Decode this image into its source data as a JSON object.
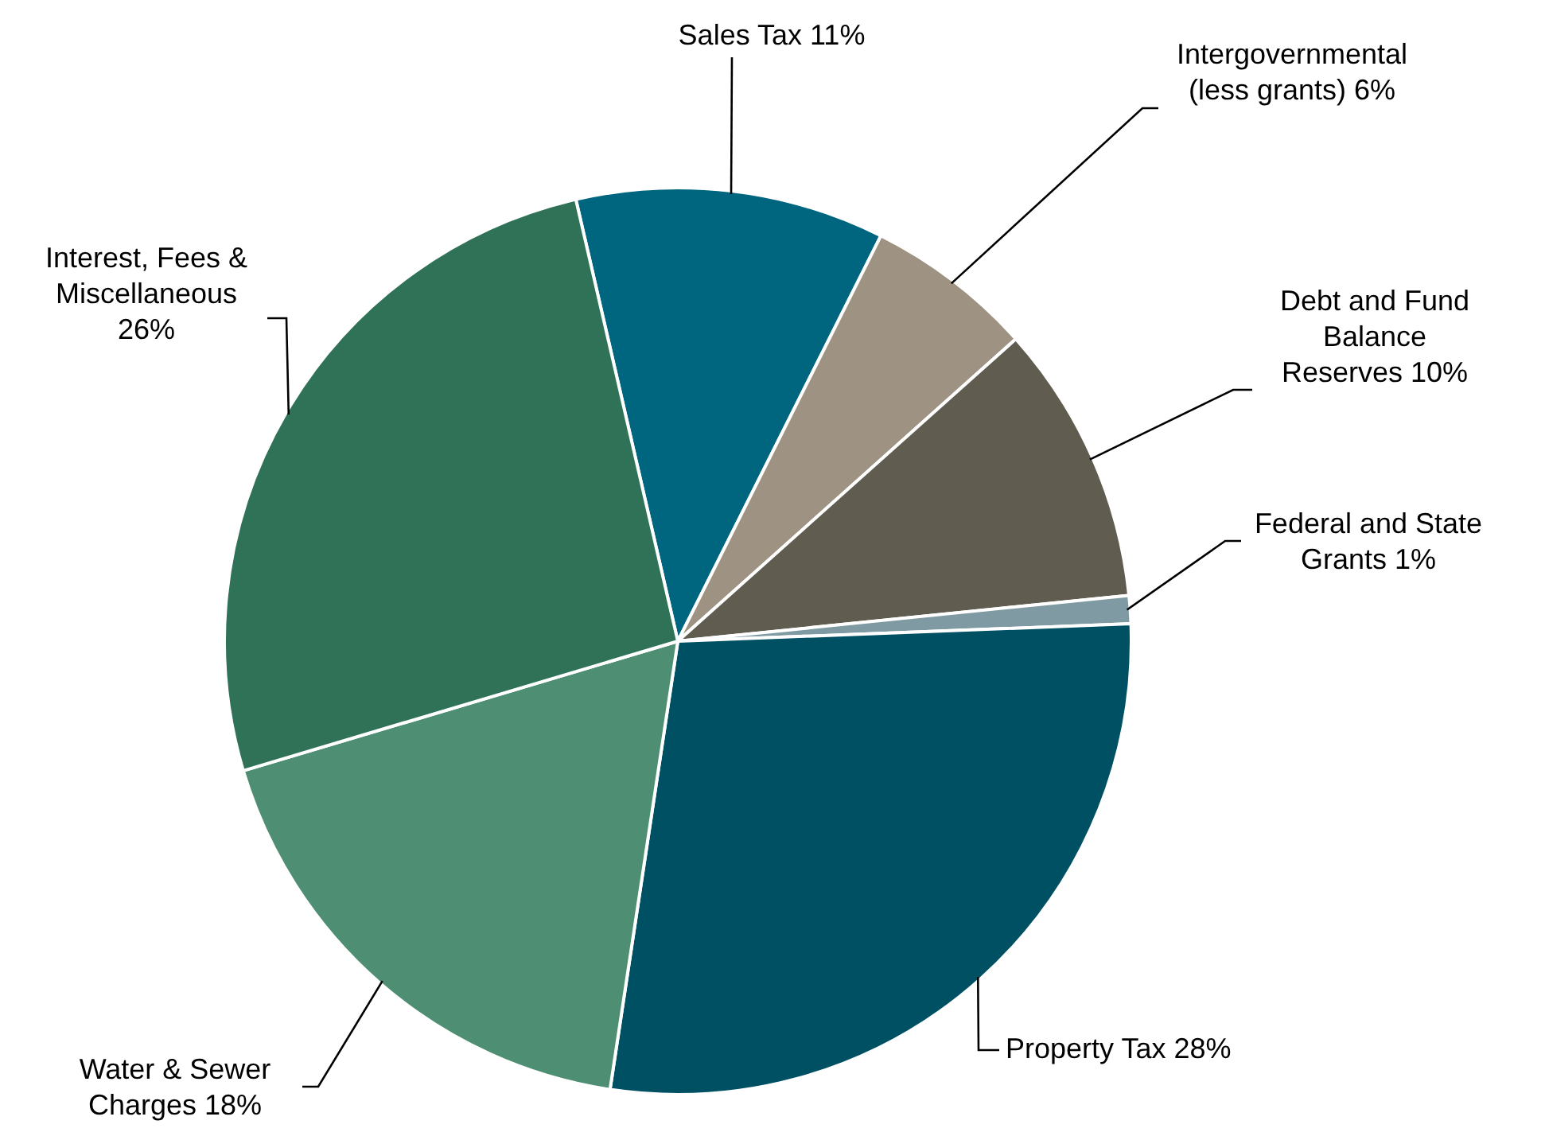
{
  "chart_data": {
    "type": "pie",
    "categories": [
      "Sales Tax",
      "Intergovernmental (less grants)",
      "Debt and Fund Balance Reserves",
      "Federal and State Grants",
      "Property Tax",
      "Water & Sewer Charges",
      "Interest, Fees & Miscellaneous"
    ],
    "values": [
      11,
      6,
      10,
      1,
      28,
      18,
      26
    ],
    "value_labels": [
      "11%",
      "6%",
      "10%",
      "1%",
      "28%",
      "18%",
      "26%"
    ],
    "colors": [
      "#00657f",
      "#9e9382",
      "#615c50",
      "#7f9aa3",
      "#005064",
      "#4e8e72",
      "#2f7257"
    ]
  }
}
